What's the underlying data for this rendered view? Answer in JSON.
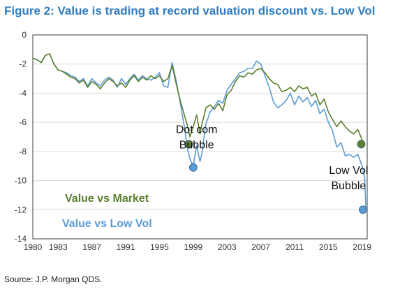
{
  "header": {
    "title": "Figure 2: Value is trading at record valuation discount vs. Low Vol"
  },
  "footer": {
    "source": "Source: J.P. Morgan QDS."
  },
  "colors": {
    "title": "#2e7cc0",
    "value_vs_market": "#5b7f2d",
    "value_vs_low_vol": "#5b9bd5",
    "frame": "#7f7f7f",
    "grid": "#d9d9d9"
  },
  "chart_data": {
    "type": "line",
    "title": "Figure 2: Value is trading at record valuation discount vs. Low Vol",
    "xlabel": "",
    "ylabel": "",
    "xlim": [
      1980,
      2019.6
    ],
    "ylim": [
      -14,
      0
    ],
    "grid": true,
    "x_ticks": [
      "1980",
      "1983",
      "1987",
      "1991",
      "1995",
      "1999",
      "2003",
      "2007",
      "2011",
      "2015",
      "2019"
    ],
    "x_tick_values": [
      1980,
      1983,
      1987,
      1991,
      1995,
      1999,
      2003,
      2007,
      2011,
      2015,
      2019
    ],
    "y_ticks": [
      "0",
      "-2",
      "-4",
      "-6",
      "-8",
      "-10",
      "-12",
      "-14"
    ],
    "y_tick_values": [
      0,
      -2,
      -4,
      -6,
      -8,
      -10,
      -12,
      -14
    ],
    "legend": [
      "Value vs Market",
      "Value vs Low Vol"
    ],
    "series": [
      {
        "name": "Value vs Market",
        "color": "#5b7f2d",
        "x": [
          1980,
          1980.5,
          1981,
          1981.5,
          1982,
          1982.5,
          1983,
          1983.5,
          1984,
          1984.5,
          1985,
          1985.5,
          1986,
          1986.5,
          1987,
          1987.5,
          1988,
          1988.5,
          1989,
          1989.5,
          1990,
          1990.5,
          1991,
          1991.5,
          1992,
          1992.5,
          1993,
          1993.5,
          1994,
          1994.5,
          1995,
          1995.5,
          1996,
          1996.5,
          1997,
          1997.5,
          1998,
          1998.3,
          1998.6,
          1999,
          1999.4,
          1999.8,
          2000,
          2000.5,
          2001,
          2001.5,
          2002,
          2002.5,
          2003,
          2003.5,
          2004,
          2004.5,
          2005,
          2005.5,
          2006,
          2006.5,
          2007,
          2007.5,
          2008,
          2008.5,
          2009,
          2009.5,
          2010,
          2010.5,
          2011,
          2011.5,
          2012,
          2012.5,
          2013,
          2013.5,
          2014,
          2014.5,
          2015,
          2015.5,
          2016,
          2016.5,
          2017,
          2017.5,
          2018,
          2018.5,
          2019,
          2019.3
        ],
        "y": [
          -1.6,
          -1.7,
          -1.9,
          -1.4,
          -1.3,
          -2.0,
          -2.4,
          -2.5,
          -2.7,
          -2.9,
          -3.0,
          -3.3,
          -3.1,
          -3.6,
          -3.2,
          -3.4,
          -3.7,
          -3.3,
          -3.0,
          -3.2,
          -3.5,
          -3.3,
          -3.6,
          -3.1,
          -2.8,
          -3.2,
          -2.9,
          -3.1,
          -2.8,
          -3.0,
          -2.8,
          -3.2,
          -3.0,
          -2.1,
          -3.4,
          -4.6,
          -5.6,
          -6.2,
          -7.0,
          -6.3,
          -5.5,
          -6.8,
          -6.2,
          -5.0,
          -4.8,
          -5.1,
          -4.7,
          -5.2,
          -4.1,
          -3.8,
          -3.2,
          -2.8,
          -2.9,
          -2.6,
          -2.7,
          -2.4,
          -2.3,
          -2.6,
          -3.0,
          -3.3,
          -3.4,
          -3.9,
          -3.8,
          -3.6,
          -3.9,
          -3.5,
          -3.7,
          -3.6,
          -4.2,
          -4.0,
          -4.8,
          -4.4,
          -5.3,
          -5.8,
          -6.3,
          -5.9,
          -6.3,
          -6.6,
          -6.8,
          -6.5,
          -7.2,
          -7.5
        ]
      },
      {
        "name": "Value vs Low Vol",
        "color": "#5b9bd5",
        "x": [
          1980,
          1980.5,
          1981,
          1981.5,
          1982,
          1982.5,
          1983,
          1983.5,
          1984,
          1984.5,
          1985,
          1985.5,
          1986,
          1986.5,
          1987,
          1987.5,
          1988,
          1988.5,
          1989,
          1989.5,
          1990,
          1990.5,
          1991,
          1991.5,
          1992,
          1992.5,
          1993,
          1993.5,
          1994,
          1994.5,
          1995,
          1995.5,
          1996,
          1996.5,
          1997,
          1997.5,
          1998,
          1998.3,
          1998.6,
          1999,
          1999.4,
          1999.8,
          2000,
          2000.5,
          2001,
          2001.5,
          2002,
          2002.5,
          2003,
          2003.5,
          2004,
          2004.5,
          2005,
          2005.5,
          2006,
          2006.5,
          2007,
          2007.5,
          2008,
          2008.5,
          2009,
          2009.5,
          2010,
          2010.5,
          2011,
          2011.5,
          2012,
          2012.5,
          2013,
          2013.5,
          2014,
          2014.5,
          2015,
          2015.5,
          2016,
          2016.5,
          2017,
          2017.5,
          2018,
          2018.5,
          2019,
          2019.3,
          2019.45
        ],
        "y": [
          -1.6,
          -1.7,
          -1.9,
          -1.4,
          -1.3,
          -2.0,
          -2.4,
          -2.5,
          -2.6,
          -2.8,
          -2.9,
          -3.2,
          -3.0,
          -3.5,
          -3.0,
          -3.3,
          -3.5,
          -3.1,
          -2.9,
          -3.1,
          -3.6,
          -3.0,
          -3.4,
          -3.0,
          -2.7,
          -3.1,
          -2.8,
          -3.0,
          -3.1,
          -2.9,
          -2.6,
          -3.5,
          -3.6,
          -1.9,
          -3.2,
          -4.8,
          -6.5,
          -7.8,
          -8.5,
          -9.0,
          -7.6,
          -8.7,
          -8.2,
          -6.1,
          -5.3,
          -4.9,
          -4.5,
          -4.7,
          -3.8,
          -3.4,
          -3.0,
          -2.6,
          -2.5,
          -2.3,
          -2.3,
          -1.8,
          -2.0,
          -2.8,
          -3.6,
          -4.6,
          -5.0,
          -4.8,
          -4.5,
          -4.0,
          -4.8,
          -4.2,
          -4.6,
          -4.3,
          -4.9,
          -4.5,
          -5.4,
          -5.1,
          -6.0,
          -6.6,
          -7.7,
          -7.4,
          -8.3,
          -8.2,
          -8.4,
          -8.2,
          -9.0,
          -9.8,
          -12.0
        ]
      }
    ],
    "annotations": [
      {
        "line1": "Dot com",
        "line2": "Bubble",
        "x": 1999.4,
        "y": -7.6
      },
      {
        "line1": "Low Vol",
        "line2": "Bubble",
        "x": 2017.4,
        "y": -10.4
      }
    ],
    "markers": [
      {
        "series": "Value vs Market",
        "x": 1998.5,
        "y": -7.5
      },
      {
        "series": "Value vs Low Vol",
        "x": 1999.0,
        "y": -9.1
      },
      {
        "series": "Value vs Market",
        "x": 2018.9,
        "y": -7.5
      },
      {
        "series": "Value vs Low Vol",
        "x": 2019.1,
        "y": -12.0
      }
    ]
  }
}
